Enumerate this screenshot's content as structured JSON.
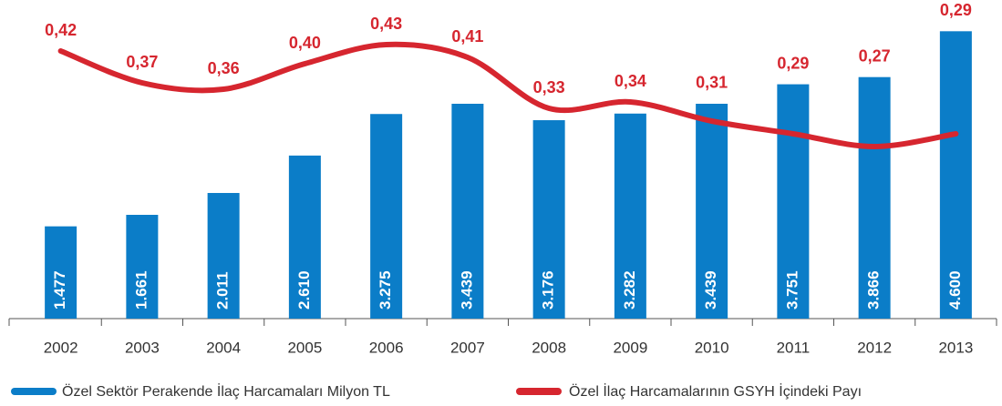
{
  "chart_data": {
    "type": "bar_line",
    "categories": [
      "2002",
      "2003",
      "2004",
      "2005",
      "2006",
      "2007",
      "2008",
      "2009",
      "2010",
      "2011",
      "2012",
      "2013"
    ],
    "series": [
      {
        "name": "Özel Sektör Perakende İlaç Harcamaları Milyon TL",
        "color": "#0b7dc8",
        "type": "bar",
        "values": [
          1477,
          1661,
          2011,
          2610,
          3275,
          3439,
          3176,
          3282,
          3439,
          3751,
          3866,
          4600
        ],
        "value_labels": [
          "1.477",
          "1.661",
          "2.011",
          "2.610",
          "3.275",
          "3.439",
          "3.176",
          "3.282",
          "3.439",
          "3.751",
          "3.866",
          "4.600"
        ]
      },
      {
        "name": "Özel İlaç Harcamalarının GSYH İçindeki Payı",
        "color": "#d6262f",
        "type": "line",
        "axis": "y2",
        "values": [
          0.42,
          0.37,
          0.36,
          0.4,
          0.43,
          0.41,
          0.33,
          0.34,
          0.31,
          0.29,
          0.27,
          0.29
        ],
        "value_labels": [
          "0,42",
          "0,37",
          "0,36",
          "0,40",
          "0,43",
          "0,41",
          "0,33",
          "0,34",
          "0,31",
          "0,29",
          "0,27",
          "0,29"
        ]
      }
    ],
    "ylim": [
      0,
      5100
    ],
    "y2lim": [
      0,
      0.5
    ],
    "legend": "bottom"
  }
}
